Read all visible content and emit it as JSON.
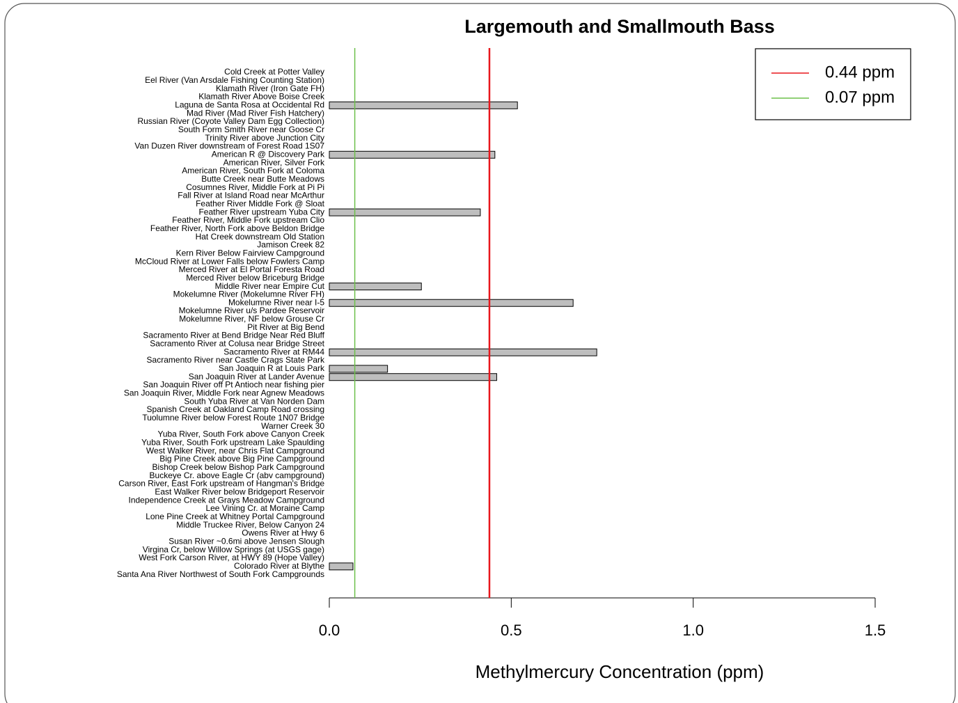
{
  "chart_data": {
    "type": "barh",
    "title": "Largemouth and Smallmouth Bass",
    "xlabel": "Methylmercury Concentration (ppm)",
    "categories": [
      "Cold Creek at Potter Valley",
      "Eel River (Van Arsdale Fishing Counting Station)",
      "Klamath River (Iron Gate FH)",
      "Klamath River Above Boise Creek",
      "Laguna de Santa Rosa at Occidental Rd",
      "Mad River (Mad River Fish Hatchery)",
      "Russian River (Coyote Valley Dam Egg Collection)",
      "South Form Smith River near Goose Cr",
      "Trinity River above Junction City",
      "Van Duzen River downstream of Forest Road 1S07",
      "American R @ Discovery Park",
      "American River, Silver Fork",
      "American River, South Fork at Coloma",
      "Butte Creek near Butte Meadows",
      "Cosumnes River, Middle Fork at Pi Pi",
      "Fall River at Island Road near McArthur",
      "Feather River Middle Fork @ Sloat",
      "Feather River upstream Yuba City",
      "Feather River, Middle Fork upstream Clio",
      "Feather River, North Fork above Beldon Bridge",
      "Hat Creek downstream Old Station",
      "Jamison Creek 82",
      "Kern River Below Fairview Campground",
      "McCloud River at Lower Falls below Fowlers Camp",
      "Merced River at El Portal Foresta Road",
      "Merced River below Briceburg Bridge",
      "Middle River near Empire Cut",
      "Mokelumne River (Mokelumne River FH)",
      "Mokelumne River near I-5",
      "Mokelumne River u/s Pardee Reservoir",
      "Mokelumne River, NF below Grouse Cr",
      "Pit River at Big Bend",
      "Sacramento River at Bend Bridge Near Red Bluff",
      "Sacramento River at Colusa near Bridge Street",
      "Sacramento River at RM44",
      "Sacramento River near Castle Crags State Park",
      "San Joaquin R at Louis Park",
      "San Joaquin River at Lander Avenue",
      "San Joaquin River off Pt Antioch near fishing pier",
      "San Joaquin River, Middle Fork near Agnew Meadows",
      "South Yuba River at Van Norden Dam",
      "Spanish Creek at Oakland Camp Road crossing",
      "Tuolumne River below Forest Route 1N07 Bridge",
      "Warner Creek 30",
      "Yuba River, South Fork above Canyon Creek",
      "Yuba River, South Fork upstream Lake Spaulding",
      "West Walker River, near Chris Flat Campground",
      "Big Pine Creek above Big Pine Campground",
      "Bishop Creek below Bishop Park Campground",
      "Buckeye Cr. above Eagle Cr (abv campground)",
      "Carson River, East Fork upstream of Hangman's Bridge",
      "East Walker River below Bridgeport Reservoir",
      "Independence Creek at Grays Meadow Campground",
      "Lee Vining Cr. at Moraine Camp",
      "Lone Pine Creek at Whitney Portal Campground",
      "Middle Truckee River, Below Canyon 24",
      "Owens River at Hwy 6",
      "Susan River ~0.6mi above Jensen Slough",
      "Virgina Cr, below Willow Springs (at USGS gage)",
      "West Fork Carson River, at HWY 89 (Hope Valley)",
      "Colorado River at Blythe",
      "Santa Ana River Northwest of South Fork Campgrounds"
    ],
    "values": [
      null,
      null,
      null,
      null,
      0.517,
      null,
      null,
      null,
      null,
      null,
      0.455,
      null,
      null,
      null,
      null,
      null,
      null,
      0.415,
      null,
      null,
      null,
      null,
      null,
      null,
      null,
      null,
      0.253,
      null,
      0.67,
      null,
      null,
      null,
      null,
      null,
      0.735,
      null,
      0.16,
      0.46,
      null,
      null,
      null,
      null,
      null,
      null,
      null,
      null,
      null,
      null,
      null,
      null,
      null,
      null,
      null,
      null,
      null,
      null,
      null,
      null,
      null,
      null,
      0.065,
      null
    ],
    "color": "#bebebe",
    "xlim": [
      0,
      1.5
    ],
    "xticks": [
      {
        "value": 0,
        "label": "0.0"
      },
      0.5,
      {
        "value": 1,
        "label": "1.0"
      },
      1.5
    ],
    "reference_lines": [
      {
        "name": "0.44 ppm",
        "value": 0.44,
        "color": "#e8161c"
      },
      {
        "name": "0.07 ppm",
        "value": 0.07,
        "color": "#6cc04a"
      }
    ],
    "legend": "upper right"
  }
}
